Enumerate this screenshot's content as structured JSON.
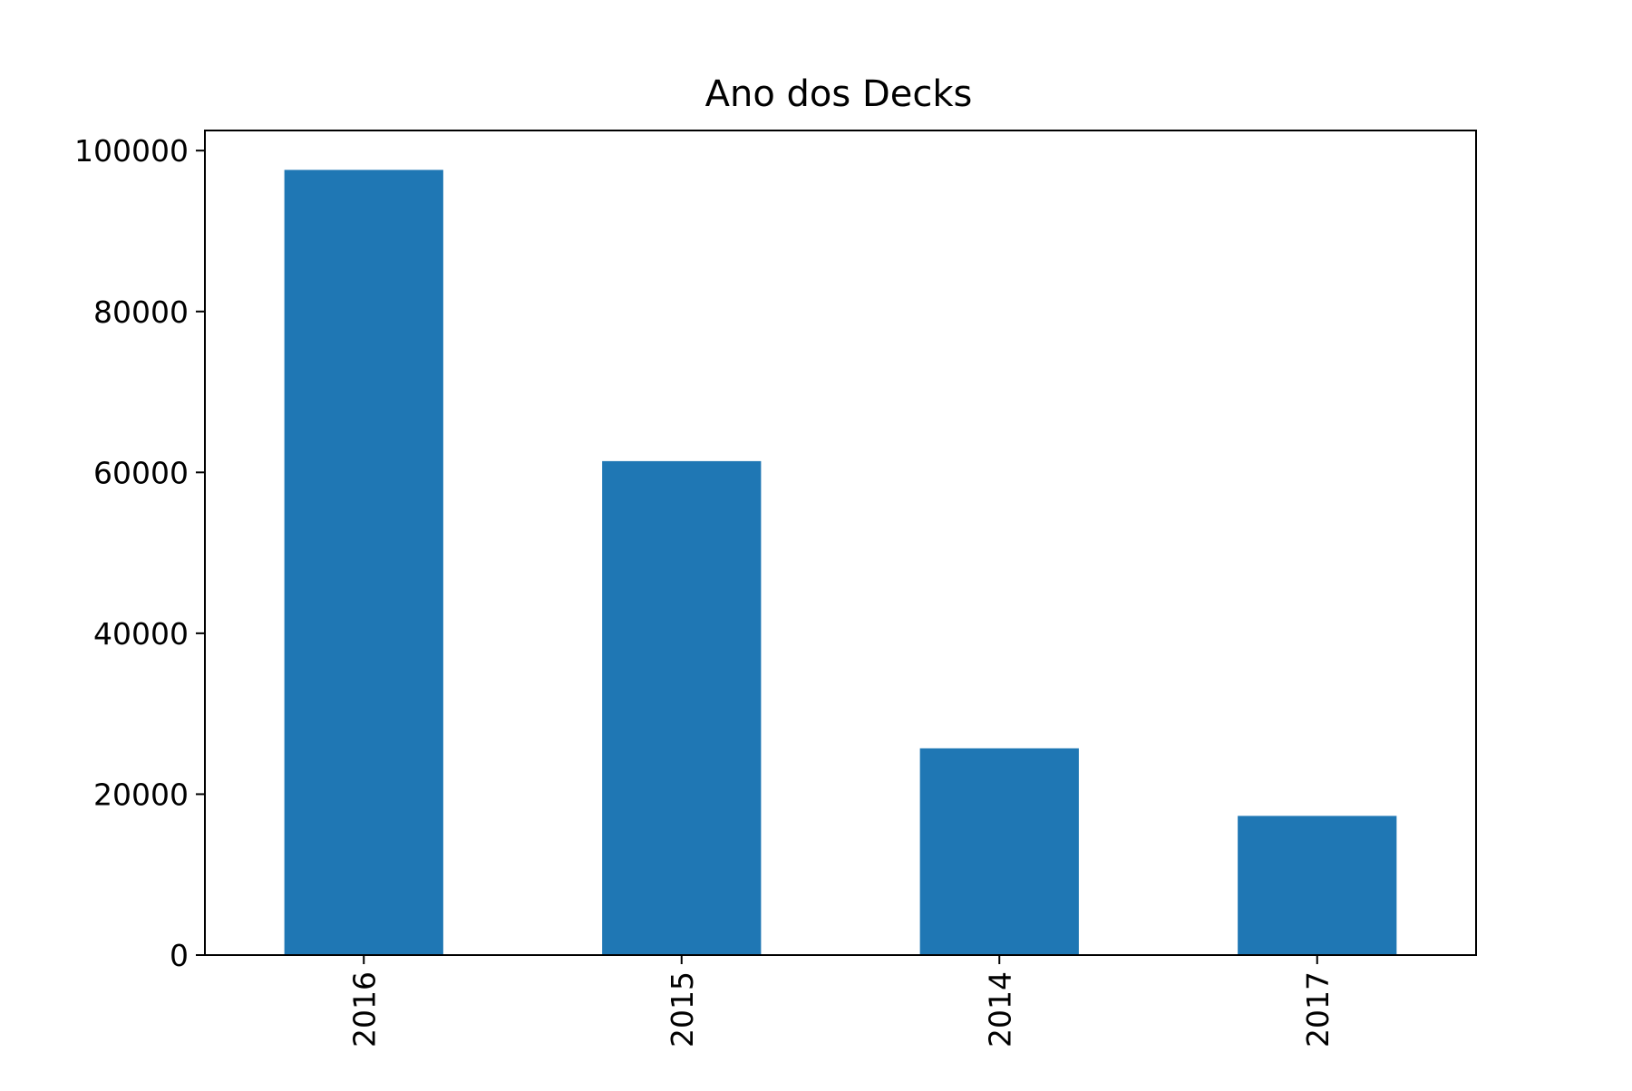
{
  "chart_data": {
    "type": "bar",
    "title": "Ano dos Decks",
    "xlabel": "",
    "ylabel": "",
    "categories": [
      "2016",
      "2015",
      "2014",
      "2017"
    ],
    "values": [
      97600,
      61400,
      25700,
      17300
    ],
    "ylim": [
      0,
      102500
    ],
    "yticks": [
      0,
      20000,
      40000,
      60000,
      80000,
      100000
    ],
    "ytick_labels": [
      "0",
      "20000",
      "40000",
      "60000",
      "80000",
      "100000"
    ],
    "bar_color": "#1f77b4",
    "grid": false,
    "legend": false
  }
}
